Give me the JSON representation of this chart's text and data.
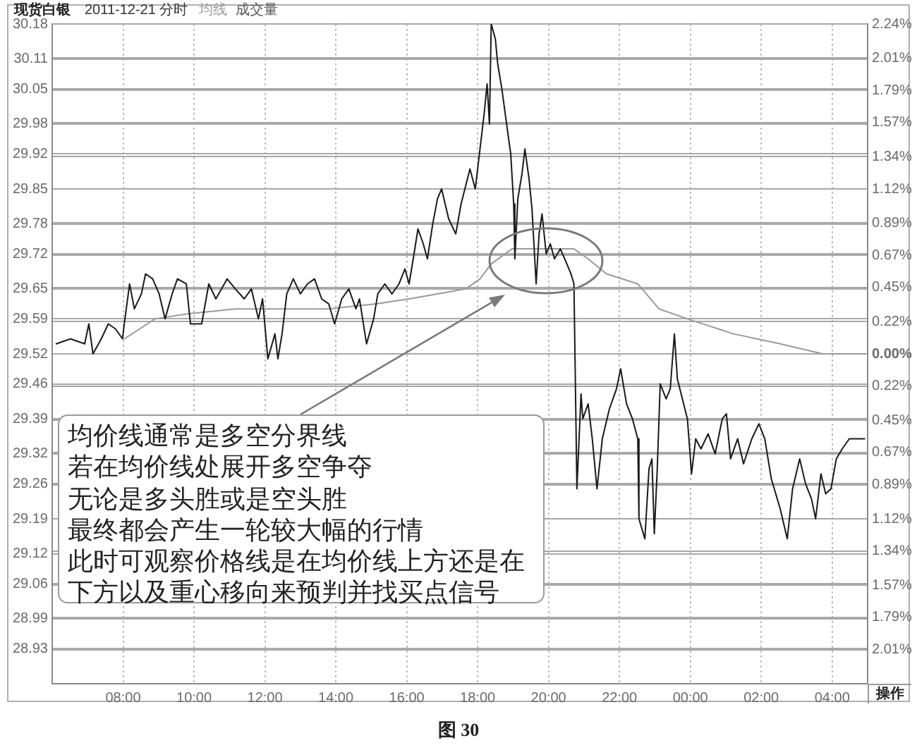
{
  "chart_data": {
    "type": "line",
    "title": "现货白银",
    "subtitle": "2011-12-21 分时",
    "xlim": [
      "2011-12-21T06:00",
      "2011-12-22T05:00"
    ],
    "xticks": [
      {
        "value": "2011-12-21T08:00",
        "label": "08:00"
      },
      {
        "value": "2011-12-21T10:00",
        "label": "10:00"
      },
      {
        "value": "2011-12-21T12:00",
        "label": "12:00"
      },
      {
        "value": "2011-12-21T14:00",
        "label": "14:00"
      },
      {
        "value": "2011-12-21T16:00",
        "label": "16:00"
      },
      {
        "value": "2011-12-21T18:00",
        "label": "18:00"
      },
      {
        "value": "2011-12-21T20:00",
        "label": "20:00"
      },
      {
        "value": "2011-12-21T22:00",
        "label": "22:00"
      },
      {
        "value": "2011-12-22T00:00",
        "label": "00:00"
      },
      {
        "value": "2011-12-22T02:00",
        "label": "02:00"
      },
      {
        "value": "2011-12-22T04:00",
        "label": "04:00"
      }
    ],
    "ylim": [
      28.86,
      30.18
    ],
    "yticks": [
      28.93,
      28.99,
      29.06,
      29.12,
      29.19,
      29.26,
      29.32,
      29.39,
      29.46,
      29.52,
      29.59,
      29.65,
      29.72,
      29.78,
      29.85,
      29.92,
      29.98,
      30.05,
      30.11,
      30.18
    ],
    "y2lim": [
      -2.24,
      2.24
    ],
    "y2ticks": [
      {
        "value": -2.01,
        "label": "2.01%"
      },
      {
        "value": -1.79,
        "label": "1.79%"
      },
      {
        "value": -1.57,
        "label": "1.57%"
      },
      {
        "value": -1.34,
        "label": "1.34%"
      },
      {
        "value": -1.12,
        "label": "1.12%"
      },
      {
        "value": -0.89,
        "label": "0.89%"
      },
      {
        "value": -0.67,
        "label": "0.67%"
      },
      {
        "value": -0.45,
        "label": "0.45%"
      },
      {
        "value": -0.22,
        "label": "0.22%"
      },
      {
        "value": 0,
        "label": "0.00%"
      },
      {
        "value": 0.22,
        "label": "0.22%"
      },
      {
        "value": 0.45,
        "label": "0.45%"
      },
      {
        "value": 0.67,
        "label": "0.67%"
      },
      {
        "value": 0.89,
        "label": "0.89%"
      },
      {
        "value": 1.12,
        "label": "1.12%"
      },
      {
        "value": 1.34,
        "label": "1.34%"
      },
      {
        "value": 1.57,
        "label": "1.57%"
      },
      {
        "value": 1.79,
        "label": "1.79%"
      },
      {
        "value": 2.01,
        "label": "2.01%"
      },
      {
        "value": 2.24,
        "label": "2.24%"
      }
    ],
    "grid": true,
    "legend": "top left",
    "series": [
      {
        "color": "#1a1a1a",
        "x": [
          "2011-12-21T06:07",
          "2011-12-21T06:31",
          "2011-12-21T06:55",
          "2011-12-21T07:02",
          "2011-12-21T07:09",
          "2011-12-21T07:23",
          "2011-12-21T07:35",
          "2011-12-21T07:47",
          "2011-12-21T07:59",
          "2011-12-21T08:02",
          "2011-12-21T08:11",
          "2011-12-21T08:19",
          "2011-12-21T08:31",
          "2011-12-21T08:38",
          "2011-12-21T08:50",
          "2011-12-21T09:01",
          "2011-12-21T09:11",
          "2011-12-21T09:23",
          "2011-12-21T09:32",
          "2011-12-21T09:47",
          "2011-12-21T09:54",
          "2011-12-21T10:13",
          "2011-12-21T10:25",
          "2011-12-21T10:37",
          "2011-12-21T10:56",
          "2011-12-21T11:10",
          "2011-12-21T11:25",
          "2011-12-21T11:37",
          "2011-12-21T11:49",
          "2011-12-21T11:56",
          "2011-12-21T12:05",
          "2011-12-21T12:17",
          "2011-12-21T12:22",
          "2011-12-21T12:29",
          "2011-12-21T12:37",
          "2011-12-21T12:48",
          "2011-12-21T13:00",
          "2011-12-21T13:12",
          "2011-12-21T13:24",
          "2011-12-21T13:36",
          "2011-12-21T13:48",
          "2011-12-21T13:58",
          "2011-12-21T14:10",
          "2011-12-21T14:22",
          "2011-12-21T14:34",
          "2011-12-21T14:40",
          "2011-12-21T14:52",
          "2011-12-21T15:04",
          "2011-12-21T15:11",
          "2011-12-21T15:23",
          "2011-12-21T15:35",
          "2011-12-21T15:47",
          "2011-12-21T15:57",
          "2011-12-21T16:04",
          "2011-12-21T16:11",
          "2011-12-21T16:19",
          "2011-12-21T16:28",
          "2011-12-21T16:35",
          "2011-12-21T16:44",
          "2011-12-21T16:52",
          "2011-12-21T16:59",
          "2011-12-21T17:11",
          "2011-12-21T17:23",
          "2011-12-21T17:32",
          "2011-12-21T17:47",
          "2011-12-21T17:56",
          "2011-12-21T18:04",
          "2011-12-21T18:11",
          "2011-12-21T18:16",
          "2011-12-21T18:20",
          "2011-12-21T18:23",
          "2011-12-21T18:30",
          "2011-12-21T18:34",
          "2011-12-21T18:41",
          "2011-12-21T18:49",
          "2011-12-21T18:56",
          "2011-12-21T19:01",
          "2011-12-21T19:03",
          "2011-12-21T19:08",
          "2011-12-21T19:15",
          "2011-12-21T19:20",
          "2011-12-21T19:27",
          "2011-12-21T19:32",
          "2011-12-21T19:39",
          "2011-12-21T19:44",
          "2011-12-21T19:49",
          "2011-12-21T19:56",
          "2011-12-21T20:03",
          "2011-12-21T20:10",
          "2011-12-21T20:20",
          "2011-12-21T20:31",
          "2011-12-21T20:38",
          "2011-12-21T20:43",
          "2011-12-21T20:48",
          "2011-12-21T20:55",
          "2011-12-21T20:58",
          "2011-12-21T21:07",
          "2011-12-21T21:14",
          "2011-12-21T21:22",
          "2011-12-21T21:31",
          "2011-12-21T21:43",
          "2011-12-21T21:55",
          "2011-12-21T22:02",
          "2011-12-21T22:12",
          "2011-12-21T22:22",
          "2011-12-21T22:31",
          "2011-12-21T22:33",
          "2011-12-21T22:43",
          "2011-12-21T22:50",
          "2011-12-21T22:55",
          "2011-12-21T22:59",
          "2011-12-21T23:04",
          "2011-12-21T23:09",
          "2011-12-21T23:19",
          "2011-12-21T23:26",
          "2011-12-21T23:33",
          "2011-12-21T23:38",
          "2011-12-21T23:55",
          "2011-12-22T00:02",
          "2011-12-22T00:09",
          "2011-12-22T00:18",
          "2011-12-22T00:30",
          "2011-12-22T00:42",
          "2011-12-22T00:54",
          "2011-12-22T01:01",
          "2011-12-22T01:08",
          "2011-12-22T01:20",
          "2011-12-22T01:30",
          "2011-12-22T01:44",
          "2011-12-22T01:56",
          "2011-12-22T02:06",
          "2011-12-22T02:17",
          "2011-12-22T02:32",
          "2011-12-22T02:44",
          "2011-12-22T02:53",
          "2011-12-22T03:05",
          "2011-12-22T03:15",
          "2011-12-22T03:25",
          "2011-12-22T03:32",
          "2011-12-22T03:41",
          "2011-12-22T03:49",
          "2011-12-22T03:58",
          "2011-12-22T04:07",
          "2011-12-22T04:17",
          "2011-12-22T04:29",
          "2011-12-22T04:55"
        ],
        "values": [
          29.54,
          29.55,
          29.54,
          29.58,
          29.52,
          29.55,
          29.58,
          29.57,
          29.55,
          29.58,
          29.66,
          29.61,
          29.64,
          29.68,
          29.67,
          29.64,
          29.59,
          29.64,
          29.67,
          29.66,
          29.58,
          29.58,
          29.66,
          29.63,
          29.67,
          29.65,
          29.63,
          29.65,
          29.59,
          29.63,
          29.51,
          29.56,
          29.51,
          29.56,
          29.64,
          29.67,
          29.64,
          29.66,
          29.67,
          29.63,
          29.62,
          29.58,
          29.63,
          29.65,
          29.61,
          29.63,
          29.54,
          29.59,
          29.64,
          29.66,
          29.64,
          29.66,
          29.69,
          29.66,
          29.71,
          29.77,
          29.74,
          29.71,
          29.78,
          29.83,
          29.85,
          29.79,
          29.76,
          29.82,
          29.89,
          29.85,
          29.93,
          30.0,
          30.06,
          29.98,
          30.18,
          30.15,
          30.1,
          30.05,
          29.98,
          29.92,
          29.82,
          29.71,
          29.83,
          29.88,
          29.93,
          29.87,
          29.81,
          29.66,
          29.76,
          29.8,
          29.72,
          29.74,
          29.71,
          29.73,
          29.7,
          29.68,
          29.66,
          29.25,
          29.44,
          29.39,
          29.42,
          29.35,
          29.25,
          29.35,
          29.41,
          29.45,
          29.49,
          29.42,
          29.39,
          29.35,
          29.19,
          29.15,
          29.29,
          29.31,
          29.16,
          29.29,
          29.46,
          29.43,
          29.45,
          29.56,
          29.47,
          29.39,
          29.28,
          29.35,
          29.33,
          29.36,
          29.32,
          29.39,
          29.4,
          29.31,
          29.35,
          29.3,
          29.35,
          29.38,
          29.35,
          29.27,
          29.21,
          29.15,
          29.25,
          29.31,
          29.26,
          29.23,
          29.19,
          29.28,
          29.24,
          29.25,
          29.31,
          29.33,
          29.35,
          29.35
        ]
      },
      {
        "name": "均线",
        "color": "#9a9a9a",
        "x": [
          "2011-12-21T08:02",
          "2011-12-21T08:54",
          "2011-12-21T09:49",
          "2011-12-21T11:10",
          "2011-12-21T12:29",
          "2011-12-21T13:48",
          "2011-12-21T15:09",
          "2011-12-21T16:04",
          "2011-12-21T16:52",
          "2011-12-21T17:40",
          "2011-12-21T18:04",
          "2011-12-21T18:23",
          "2011-12-21T18:58",
          "2011-12-21T19:56",
          "2011-12-21T20:43",
          "2011-12-21T21:07",
          "2011-12-21T21:38",
          "2011-12-21T22:31",
          "2011-12-21T23:07",
          "2011-12-21T23:55",
          "2011-12-22T01:13",
          "2011-12-22T02:32",
          "2011-12-22T03:44",
          "2011-12-22T04:55"
        ],
        "values": [
          29.55,
          29.59,
          29.6,
          29.61,
          29.61,
          29.61,
          29.62,
          29.63,
          29.64,
          29.65,
          29.67,
          29.7,
          29.73,
          29.73,
          29.73,
          29.71,
          29.68,
          29.66,
          29.61,
          29.59,
          29.56,
          29.54,
          29.52,
          29.52
        ]
      }
    ],
    "annotations": [
      "成交量",
      "均价线通常是多空分界线",
      "若在均价线处展开多空争夺",
      "无论是多头胜或是空头胜",
      "最终都会产生一轮较大幅的行情",
      "此时可观察价格线是在均价线上方还是在下方以及重心移向来预判并找买点信号",
      "操作",
      "图 30"
    ]
  }
}
